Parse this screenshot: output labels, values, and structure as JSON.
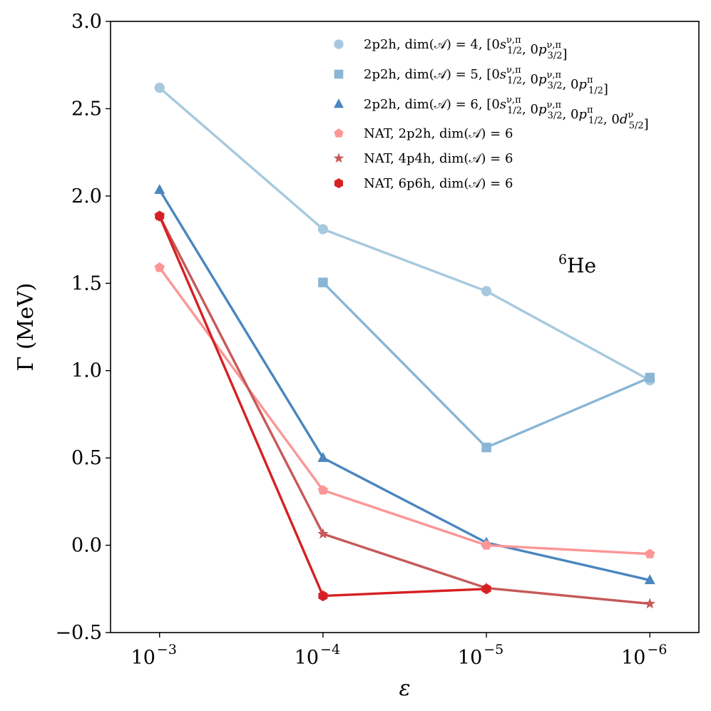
{
  "chart_data": {
    "type": "line",
    "title": "",
    "xlabel": "ε",
    "ylabel": "Γ (MeV)",
    "x_categories": [
      "10",
      "10",
      "10",
      "10"
    ],
    "x_exponents": [
      "−3",
      "−4",
      "−5",
      "−6"
    ],
    "x_values": [
      0.001,
      0.0001,
      1e-05,
      1e-06
    ],
    "xlim_index": [
      -0.3,
      3.3
    ],
    "ylim": [
      -0.5,
      3.0
    ],
    "yticks": [
      -0.5,
      0.0,
      0.5,
      1.0,
      1.5,
      2.0,
      2.5,
      3.0
    ],
    "ytick_labels": [
      "−0.5",
      "0.0",
      "0.5",
      "1.0",
      "1.5",
      "2.0",
      "2.5",
      "3.0"
    ],
    "grid": false,
    "legend_position": "top-right",
    "annotation": {
      "sup": "6",
      "text": "He"
    },
    "series": [
      {
        "name": "2p2h, dim(𝒜) = 4, [0s1/2ν,π, 0p3/2ν,π]",
        "legend_prefix": "2p2h, dim(𝒜) = 4, [0s",
        "legend_parts": [
          [
            "ν,π",
            "1/2"
          ],
          [
            "ν,π",
            "3/2"
          ]
        ],
        "marker": "circle",
        "color": "#a6c9df",
        "values": [
          2.62,
          1.81,
          1.455,
          0.945
        ]
      },
      {
        "name": "2p2h, dim(𝒜) = 5, [0s1/2ν,π, 0p3/2ν,π, 0p1/2π]",
        "marker": "square",
        "color": "#8ab6d6",
        "values": [
          null,
          1.505,
          0.56,
          0.96
        ]
      },
      {
        "name": "2p2h, dim(𝒜) = 6, [0s1/2ν,π, 0p3/2ν,π, 0p1/2π, 0d5/2ν]",
        "marker": "triangle",
        "color": "#4a86bf",
        "values": [
          2.035,
          0.5,
          0.015,
          -0.2
        ]
      },
      {
        "name": "NAT, 2p2h, dim(𝒜) = 6",
        "marker": "pentagon",
        "color": "#fc9696",
        "values": [
          1.59,
          0.315,
          0.0,
          -0.05
        ]
      },
      {
        "name": "NAT, 4p4h, dim(𝒜) = 6",
        "marker": "star",
        "color": "#c65959",
        "values": [
          1.885,
          0.065,
          -0.245,
          -0.335
        ]
      },
      {
        "name": "NAT, 6p6h, dim(𝒜) = 6",
        "marker": "hexagon",
        "color": "#d62124",
        "values": [
          1.885,
          -0.29,
          -0.25,
          null
        ]
      }
    ]
  }
}
